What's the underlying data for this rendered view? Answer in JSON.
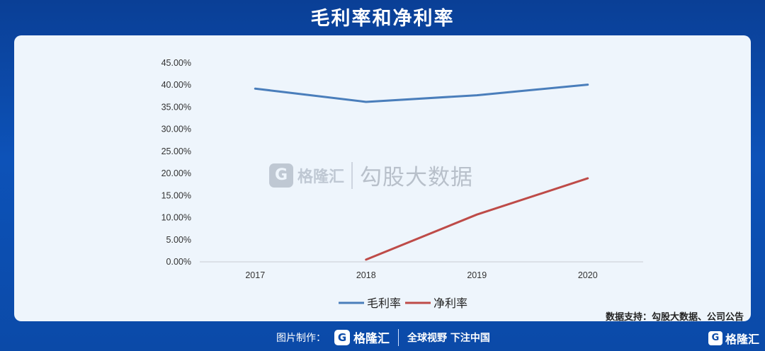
{
  "title": "毛利率和净利率",
  "watermark": {
    "logo_letter": "G",
    "brand": "格隆汇",
    "text": "勾股大数据"
  },
  "source": "数据支持：勾股大数据、公司公告",
  "footer": {
    "label": "图片制作：",
    "logo_letter": "G",
    "brand": "格隆汇",
    "slogan": "全球视野 下注中国",
    "right_logo_letter": "G",
    "right_brand": "格隆汇"
  },
  "colors": {
    "gross": "#4a7ebb",
    "net": "#be4b48",
    "background": "#0d52b8",
    "panel": "#eef5fc"
  },
  "chart_data": {
    "type": "line",
    "title": "毛利率和净利率",
    "categories": [
      "2017",
      "2018",
      "2019",
      "2020"
    ],
    "y_ticks": [
      "0.00%",
      "5.00%",
      "10.00%",
      "15.00%",
      "20.00%",
      "25.00%",
      "30.00%",
      "35.00%",
      "40.00%",
      "45.00%"
    ],
    "ylim": [
      0,
      45
    ],
    "series": [
      {
        "name": "毛利率",
        "values": [
          39.2,
          36.2,
          37.7,
          40.1
        ]
      },
      {
        "name": "净利率",
        "values": [
          null,
          0.5,
          10.7,
          18.9
        ]
      }
    ],
    "legend": "bottom",
    "grid": false
  }
}
